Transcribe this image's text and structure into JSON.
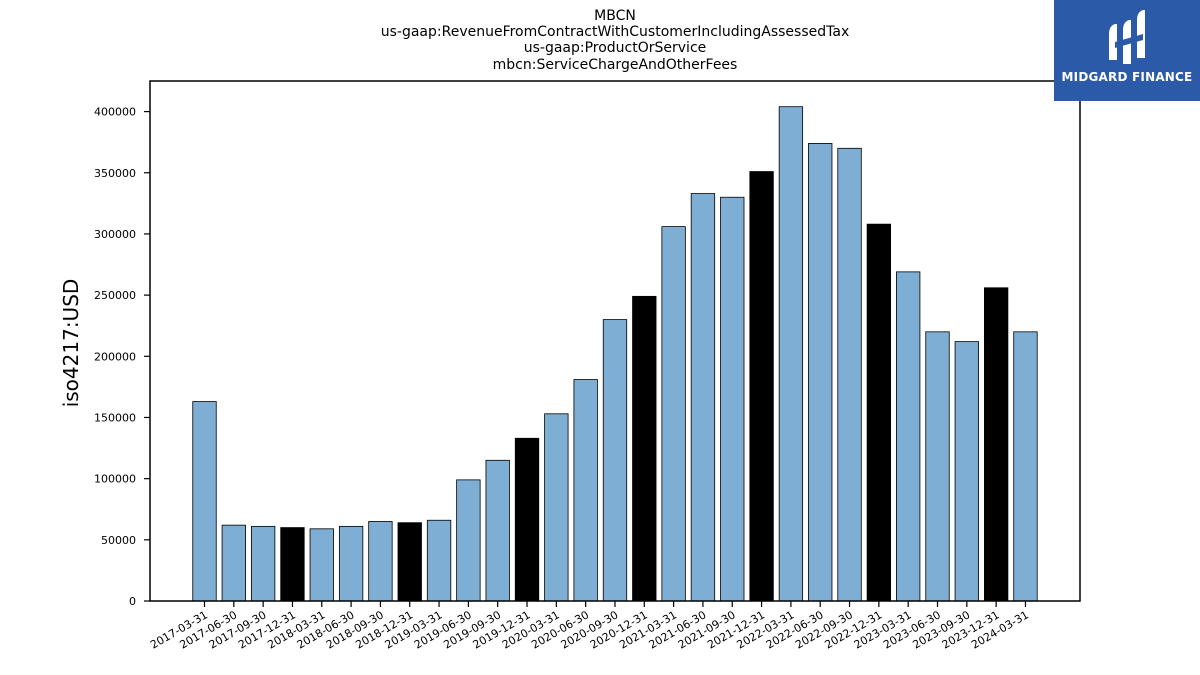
{
  "chart_data": {
    "type": "bar",
    "title_lines": [
      "MBCN",
      "us-gaap:RevenueFromContractWithCustomerIncludingAssessedTax",
      "us-gaap:ProductOrService",
      "mbcn:ServiceChargeAndOtherFees"
    ],
    "xlabel": "",
    "ylabel": "iso4217:USD",
    "ylim": [
      0,
      425000
    ],
    "yticks": [
      0,
      50000,
      100000,
      150000,
      200000,
      250000,
      300000,
      350000,
      400000
    ],
    "grid": false,
    "colors": {
      "quarter": "#7eaed3",
      "year_end": "#000000",
      "edge": "#000000"
    },
    "categories": [
      "2017-03-31",
      "2017-06-30",
      "2017-09-30",
      "2017-12-31",
      "2018-03-31",
      "2018-06-30",
      "2018-09-30",
      "2018-12-31",
      "2019-03-31",
      "2019-06-30",
      "2019-09-30",
      "2019-12-31",
      "2020-03-31",
      "2020-06-30",
      "2020-09-30",
      "2020-12-31",
      "2021-03-31",
      "2021-06-30",
      "2021-09-30",
      "2021-12-31",
      "2022-03-31",
      "2022-06-30",
      "2022-09-30",
      "2022-12-31",
      "2023-03-31",
      "2023-06-30",
      "2023-09-30",
      "2023-12-31",
      "2024-03-31"
    ],
    "values": [
      163000,
      62000,
      61000,
      60000,
      59000,
      61000,
      65000,
      64000,
      66000,
      99000,
      115000,
      133000,
      153000,
      181000,
      230000,
      249000,
      306000,
      333000,
      330000,
      351000,
      404000,
      374000,
      370000,
      308000,
      269000,
      220000,
      212000,
      256000,
      220000
    ],
    "highlight": [
      false,
      false,
      false,
      true,
      false,
      false,
      false,
      true,
      false,
      false,
      false,
      true,
      false,
      false,
      false,
      true,
      false,
      false,
      false,
      true,
      false,
      false,
      false,
      true,
      false,
      false,
      false,
      true,
      false
    ]
  },
  "logo": {
    "text": "MIDGARD FINANCE",
    "icon": "midgard-logo-icon"
  }
}
